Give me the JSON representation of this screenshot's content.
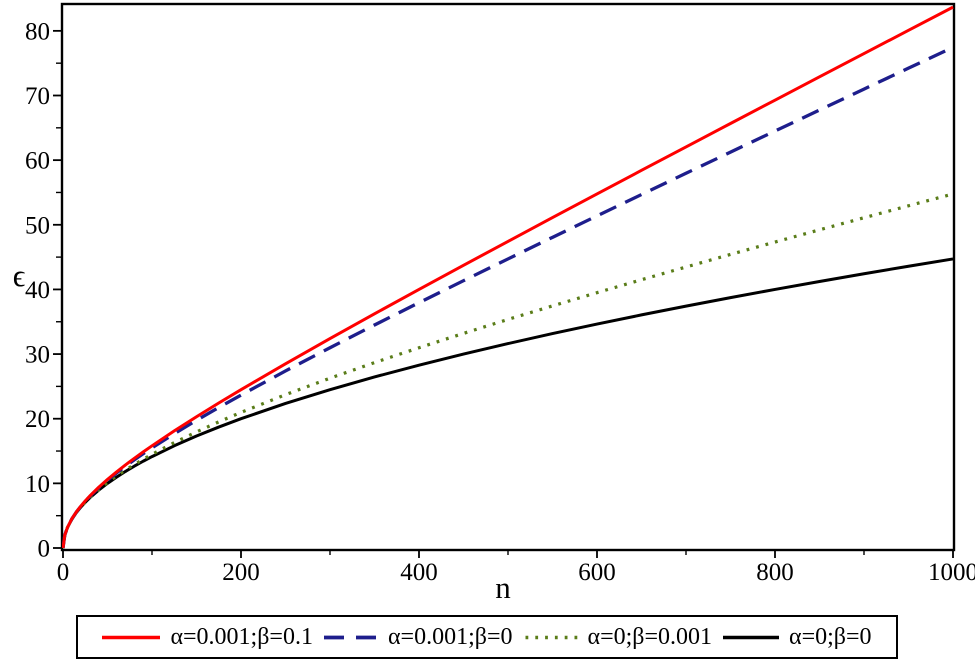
{
  "figure": {
    "background": "#ffffff",
    "axis_color": "#000000",
    "tick_label_color": "#000000"
  },
  "chart_data": {
    "type": "line",
    "title": "",
    "xlabel": "n",
    "ylabel": "ϵ",
    "xlim": [
      0,
      1000
    ],
    "ylim": [
      0,
      84
    ],
    "grid": false,
    "legend_position": "bottom",
    "x_major_ticks": [
      0,
      200,
      400,
      600,
      800,
      1000
    ],
    "x_minor_ticks": [
      100,
      300,
      500,
      700,
      900
    ],
    "y_major_ticks": [
      0,
      10,
      20,
      30,
      40,
      50,
      60,
      70,
      80
    ],
    "y_minor_ticks": [
      5,
      15,
      25,
      35,
      45,
      55,
      65,
      75
    ],
    "x": [
      0,
      2,
      5,
      10,
      15,
      20,
      25,
      30,
      40,
      50,
      60,
      70,
      80,
      90,
      100,
      125,
      150,
      175,
      200,
      250,
      300,
      350,
      400,
      450,
      500,
      550,
      600,
      650,
      700,
      750,
      800,
      850,
      900,
      950,
      1000
    ],
    "series": [
      {
        "name": "α=0.001;β=0.1",
        "color": "#ff0000",
        "line_style": "solid",
        "values": [
          0,
          2.0,
          3.18,
          4.53,
          5.58,
          6.48,
          7.29,
          8.03,
          9.38,
          10.61,
          11.75,
          12.83,
          13.86,
          14.85,
          15.81,
          18.11,
          20.31,
          22.43,
          24.49,
          28.5,
          32.4,
          36.23,
          40.0,
          43.73,
          47.43,
          51.11,
          54.77,
          58.42,
          62.05,
          65.67,
          69.28,
          72.89,
          76.49,
          80.08,
          83.67
        ]
      },
      {
        "name": "α=0.001;β=0",
        "color": "#1e1e8c",
        "line_style": "dashed",
        "values": [
          0,
          2.0,
          3.18,
          4.52,
          5.56,
          6.45,
          7.25,
          7.97,
          9.3,
          10.49,
          11.59,
          12.63,
          13.62,
          14.57,
          15.49,
          17.68,
          19.75,
          21.74,
          23.66,
          27.39,
          30.98,
          34.5,
          37.95,
          41.35,
          44.72,
          48.06,
          51.38,
          54.68,
          57.97,
          61.24,
          64.5,
          67.75,
          70.99,
          74.23,
          77.46
        ]
      },
      {
        "name": "α=0;β=0.001",
        "color": "#5a7d19",
        "line_style": "dotted",
        "values": [
          0,
          2.0,
          3.17,
          4.48,
          5.5,
          6.36,
          7.12,
          7.8,
          9.03,
          10.12,
          11.12,
          12.04,
          12.9,
          13.71,
          14.49,
          16.3,
          17.96,
          19.51,
          20.98,
          23.72,
          26.27,
          28.68,
          30.98,
          33.2,
          35.36,
          37.45,
          39.5,
          41.5,
          43.47,
          45.42,
          47.33,
          49.22,
          51.09,
          52.94,
          54.77
        ]
      },
      {
        "name": "α=0;β=0",
        "color": "#000000",
        "line_style": "solid",
        "values": [
          0,
          2.0,
          3.16,
          4.47,
          5.48,
          6.32,
          7.07,
          7.75,
          8.94,
          10.0,
          10.95,
          11.83,
          12.65,
          13.42,
          14.14,
          15.81,
          17.32,
          18.71,
          20.0,
          22.36,
          24.49,
          26.46,
          28.28,
          30.0,
          31.62,
          33.17,
          34.64,
          36.06,
          37.42,
          38.73,
          40.0,
          41.23,
          42.43,
          43.59,
          44.72
        ]
      }
    ]
  }
}
